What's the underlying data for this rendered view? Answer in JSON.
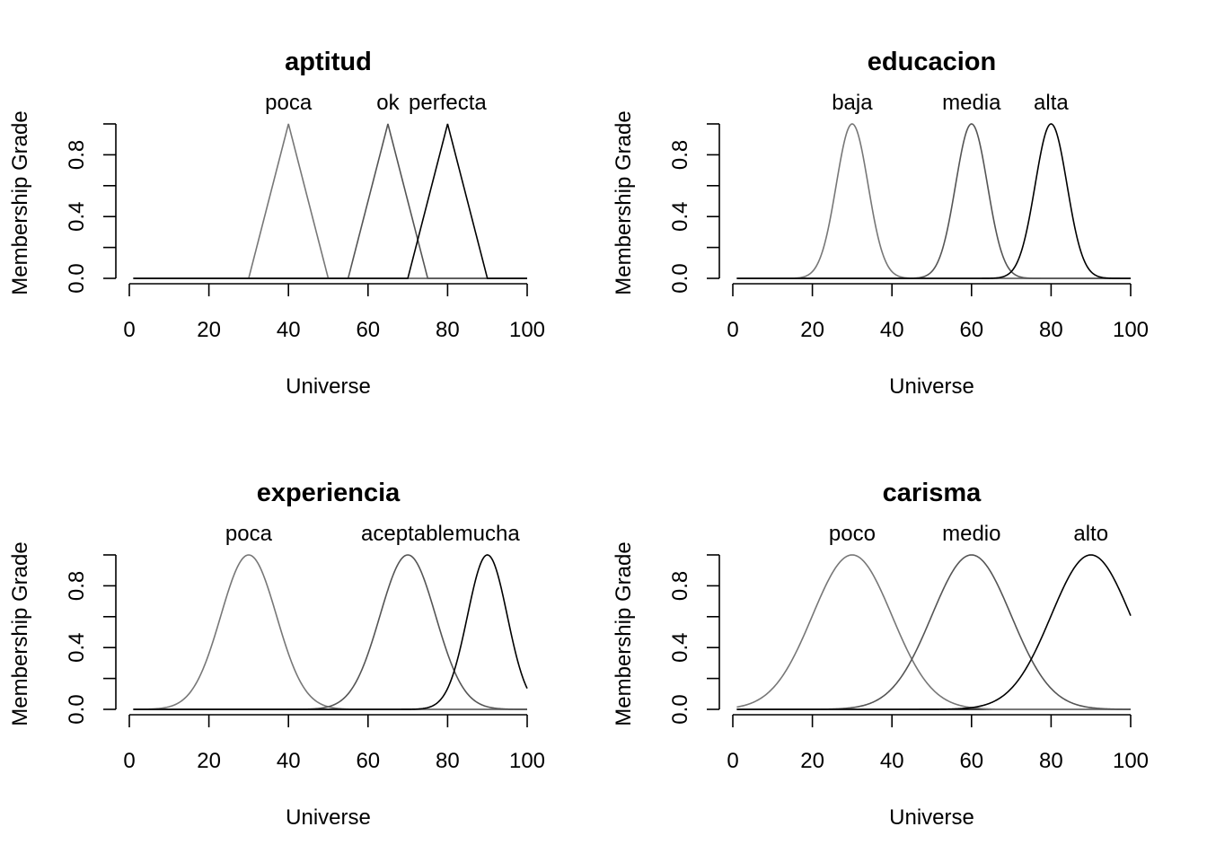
{
  "chart_data": [
    {
      "type": "line",
      "title": "aptitud",
      "xlabel": "Universe",
      "ylabel": "Membership Grade",
      "xlim": [
        0,
        100
      ],
      "ylim": [
        0,
        1
      ],
      "x_ticks": [
        "0",
        "20",
        "40",
        "60",
        "80",
        "100"
      ],
      "y_ticks": [
        "0.0",
        "0.4",
        "0.8"
      ],
      "series": [
        {
          "name": "poca",
          "shape": "triangle",
          "params": [
            30,
            40,
            50
          ],
          "color": "#777777"
        },
        {
          "name": "ok",
          "shape": "triangle",
          "params": [
            55,
            65,
            75
          ],
          "color": "#555555"
        },
        {
          "name": "perfecta",
          "shape": "triangle",
          "params": [
            70,
            80,
            90
          ],
          "color": "#000000"
        }
      ]
    },
    {
      "type": "line",
      "title": "educacion",
      "xlabel": "Universe",
      "ylabel": "Membership Grade",
      "xlim": [
        0,
        100
      ],
      "ylim": [
        0,
        1
      ],
      "x_ticks": [
        "0",
        "20",
        "40",
        "60",
        "80",
        "100"
      ],
      "y_ticks": [
        "0.0",
        "0.4",
        "0.8"
      ],
      "series": [
        {
          "name": "baja",
          "shape": "gaussian",
          "params": [
            30,
            4
          ],
          "color": "#777777"
        },
        {
          "name": "media",
          "shape": "gaussian",
          "params": [
            60,
            4
          ],
          "color": "#555555"
        },
        {
          "name": "alta",
          "shape": "gaussian",
          "params": [
            80,
            4
          ],
          "color": "#000000"
        }
      ]
    },
    {
      "type": "line",
      "title": "experiencia",
      "xlabel": "Universe",
      "ylabel": "Membership Grade",
      "xlim": [
        0,
        100
      ],
      "ylim": [
        0,
        1
      ],
      "x_ticks": [
        "0",
        "20",
        "40",
        "60",
        "80",
        "100"
      ],
      "y_ticks": [
        "0.0",
        "0.4",
        "0.8"
      ],
      "series": [
        {
          "name": "poca",
          "shape": "gaussian",
          "params": [
            30,
            7
          ],
          "color": "#777777"
        },
        {
          "name": "aceptable",
          "shape": "gaussian",
          "params": [
            70,
            7
          ],
          "color": "#555555"
        },
        {
          "name": "mucha",
          "shape": "gaussian",
          "params": [
            90,
            5
          ],
          "color": "#000000"
        }
      ]
    },
    {
      "type": "line",
      "title": "carisma",
      "xlabel": "Universe",
      "ylabel": "Membership Grade",
      "xlim": [
        0,
        100
      ],
      "ylim": [
        0,
        1
      ],
      "x_ticks": [
        "0",
        "20",
        "40",
        "60",
        "80",
        "100"
      ],
      "y_ticks": [
        "0.0",
        "0.4",
        "0.8"
      ],
      "series": [
        {
          "name": "poco",
          "shape": "gaussian",
          "params": [
            30,
            10
          ],
          "color": "#777777"
        },
        {
          "name": "medio",
          "shape": "gaussian",
          "params": [
            60,
            10
          ],
          "color": "#555555"
        },
        {
          "name": "alto",
          "shape": "gaussian",
          "params": [
            90,
            10
          ],
          "color": "#000000"
        }
      ]
    }
  ]
}
